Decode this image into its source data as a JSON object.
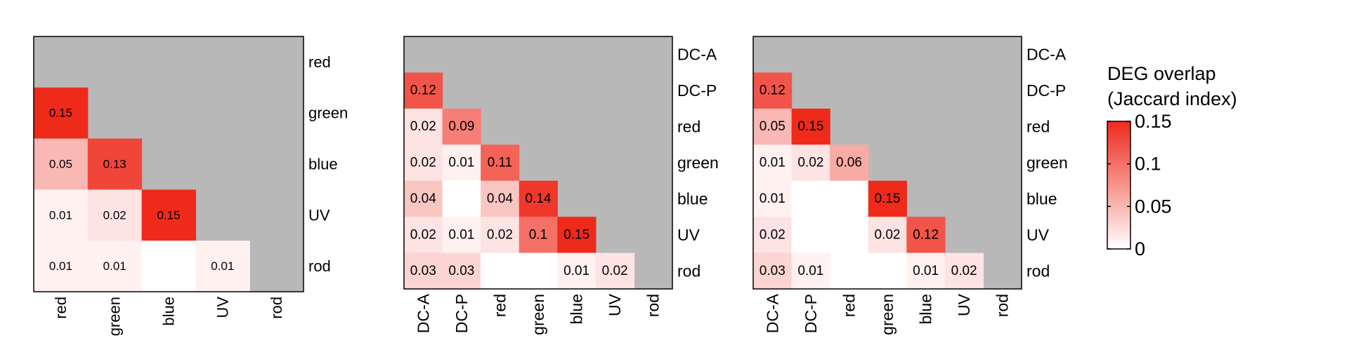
{
  "chart_data": [
    {
      "type": "heatmap",
      "x_labels": [
        "red",
        "green",
        "blue",
        "UV",
        "rod"
      ],
      "y_labels": [
        "red",
        "green",
        "blue",
        "UV",
        "rod"
      ],
      "cells": [
        {
          "row": 1,
          "col": 0,
          "value": 0.15,
          "label": "0.15"
        },
        {
          "row": 2,
          "col": 0,
          "value": 0.05,
          "label": "0.05"
        },
        {
          "row": 2,
          "col": 1,
          "value": 0.13,
          "label": "0.13"
        },
        {
          "row": 3,
          "col": 0,
          "value": 0.01,
          "label": "0.01"
        },
        {
          "row": 3,
          "col": 1,
          "value": 0.02,
          "label": "0.02"
        },
        {
          "row": 3,
          "col": 2,
          "value": 0.15,
          "label": "0.15"
        },
        {
          "row": 4,
          "col": 0,
          "value": 0.01,
          "label": "0.01"
        },
        {
          "row": 4,
          "col": 1,
          "value": 0.01,
          "label": "0.01"
        },
        {
          "row": 4,
          "col": 2,
          "value": 0,
          "label": ""
        },
        {
          "row": 4,
          "col": 3,
          "value": 0.01,
          "label": "0.01"
        }
      ]
    },
    {
      "type": "heatmap",
      "x_labels": [
        "DC-A",
        "DC-P",
        "red",
        "green",
        "blue",
        "UV",
        "rod"
      ],
      "y_labels": [
        "DC-A",
        "DC-P",
        "red",
        "green",
        "blue",
        "UV",
        "rod"
      ],
      "cells": [
        {
          "row": 1,
          "col": 0,
          "value": 0.12,
          "label": "0.12"
        },
        {
          "row": 2,
          "col": 0,
          "value": 0.02,
          "label": "0.02"
        },
        {
          "row": 2,
          "col": 1,
          "value": 0.09,
          "label": "0.09"
        },
        {
          "row": 3,
          "col": 0,
          "value": 0.02,
          "label": "0.02"
        },
        {
          "row": 3,
          "col": 1,
          "value": 0.01,
          "label": "0.01"
        },
        {
          "row": 3,
          "col": 2,
          "value": 0.11,
          "label": "0.11"
        },
        {
          "row": 4,
          "col": 0,
          "value": 0.04,
          "label": "0.04"
        },
        {
          "row": 4,
          "col": 1,
          "value": 0,
          "label": ""
        },
        {
          "row": 4,
          "col": 2,
          "value": 0.04,
          "label": "0.04"
        },
        {
          "row": 4,
          "col": 3,
          "value": 0.14,
          "label": "0.14"
        },
        {
          "row": 5,
          "col": 0,
          "value": 0.02,
          "label": "0.02"
        },
        {
          "row": 5,
          "col": 1,
          "value": 0.01,
          "label": "0.01"
        },
        {
          "row": 5,
          "col": 2,
          "value": 0.02,
          "label": "0.02"
        },
        {
          "row": 5,
          "col": 3,
          "value": 0.1,
          "label": "0.1"
        },
        {
          "row": 5,
          "col": 4,
          "value": 0.15,
          "label": "0.15"
        },
        {
          "row": 6,
          "col": 0,
          "value": 0.03,
          "label": "0.03"
        },
        {
          "row": 6,
          "col": 1,
          "value": 0.03,
          "label": "0.03"
        },
        {
          "row": 6,
          "col": 2,
          "value": 0,
          "label": ""
        },
        {
          "row": 6,
          "col": 3,
          "value": 0,
          "label": ""
        },
        {
          "row": 6,
          "col": 4,
          "value": 0.01,
          "label": "0.01"
        },
        {
          "row": 6,
          "col": 5,
          "value": 0.02,
          "label": "0.02"
        }
      ]
    },
    {
      "type": "heatmap",
      "x_labels": [
        "DC-A",
        "DC-P",
        "red",
        "green",
        "blue",
        "UV",
        "rod"
      ],
      "y_labels": [
        "DC-A",
        "DC-P",
        "red",
        "green",
        "blue",
        "UV",
        "rod"
      ],
      "cells": [
        {
          "row": 1,
          "col": 0,
          "value": 0.12,
          "label": "0.12"
        },
        {
          "row": 2,
          "col": 0,
          "value": 0.05,
          "label": "0.05"
        },
        {
          "row": 2,
          "col": 1,
          "value": 0.15,
          "label": "0.15"
        },
        {
          "row": 3,
          "col": 0,
          "value": 0.01,
          "label": "0.01"
        },
        {
          "row": 3,
          "col": 1,
          "value": 0.02,
          "label": "0.02"
        },
        {
          "row": 3,
          "col": 2,
          "value": 0.06,
          "label": "0.06"
        },
        {
          "row": 4,
          "col": 0,
          "value": 0.01,
          "label": "0.01"
        },
        {
          "row": 4,
          "col": 1,
          "value": 0,
          "label": ""
        },
        {
          "row": 4,
          "col": 2,
          "value": 0,
          "label": ""
        },
        {
          "row": 4,
          "col": 3,
          "value": 0.15,
          "label": "0.15"
        },
        {
          "row": 5,
          "col": 0,
          "value": 0.02,
          "label": "0.02"
        },
        {
          "row": 5,
          "col": 1,
          "value": 0,
          "label": ""
        },
        {
          "row": 5,
          "col": 2,
          "value": 0,
          "label": ""
        },
        {
          "row": 5,
          "col": 3,
          "value": 0.02,
          "label": "0.02"
        },
        {
          "row": 5,
          "col": 4,
          "value": 0.12,
          "label": "0.12"
        },
        {
          "row": 6,
          "col": 0,
          "value": 0.03,
          "label": "0.03"
        },
        {
          "row": 6,
          "col": 1,
          "value": 0.01,
          "label": "0.01"
        },
        {
          "row": 6,
          "col": 2,
          "value": 0,
          "label": ""
        },
        {
          "row": 6,
          "col": 3,
          "value": 0,
          "label": ""
        },
        {
          "row": 6,
          "col": 4,
          "value": 0.01,
          "label": "0.01"
        },
        {
          "row": 6,
          "col": 5,
          "value": 0.02,
          "label": "0.02"
        }
      ]
    }
  ],
  "legend": {
    "title_line1": "DEG overlap",
    "title_line2": "(Jaccard index)",
    "range": [
      0,
      0.15
    ],
    "ticks": [
      {
        "value": 0.15,
        "label": "0.15"
      },
      {
        "value": 0.1,
        "label": "0.1"
      },
      {
        "value": 0.05,
        "label": "0.05"
      },
      {
        "value": 0,
        "label": "0"
      }
    ]
  },
  "colors": {
    "empty_cell": "#b8b8b8",
    "scale_low": "#ffffff",
    "scale_high": "#ee2a1b",
    "frame": "#000000"
  }
}
